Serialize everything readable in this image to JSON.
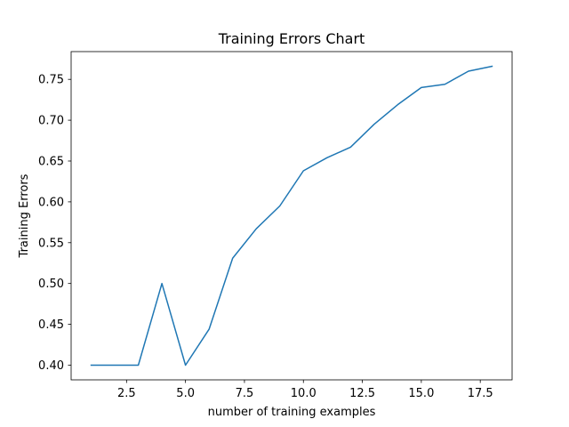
{
  "chart_data": {
    "type": "line",
    "title": "Training Errors Chart",
    "xlabel": "number of training examples",
    "ylabel": "Training Errors",
    "xlim": [
      0.15,
      18.85
    ],
    "ylim": [
      0.382,
      0.784
    ],
    "xticks": [
      2.5,
      5.0,
      7.5,
      10.0,
      12.5,
      15.0,
      17.5
    ],
    "xtick_labels": [
      "2.5",
      "5.0",
      "7.5",
      "10.0",
      "12.5",
      "15.0",
      "17.5"
    ],
    "yticks": [
      0.4,
      0.45,
      0.5,
      0.55,
      0.6,
      0.65,
      0.7,
      0.75
    ],
    "ytick_labels": [
      "0.40",
      "0.45",
      "0.50",
      "0.55",
      "0.60",
      "0.65",
      "0.70",
      "0.75"
    ],
    "grid": false,
    "series": [
      {
        "color": "#1f77b4",
        "x": [
          1,
          2,
          3,
          4,
          5,
          6,
          7,
          8,
          9,
          10,
          11,
          12,
          13,
          14,
          15,
          16,
          17,
          18
        ],
        "values": [
          0.4,
          0.4,
          0.4,
          0.5,
          0.4,
          0.444,
          0.531,
          0.567,
          0.595,
          0.638,
          0.654,
          0.667,
          0.695,
          0.719,
          0.74,
          0.744,
          0.76,
          0.766
        ]
      }
    ]
  }
}
